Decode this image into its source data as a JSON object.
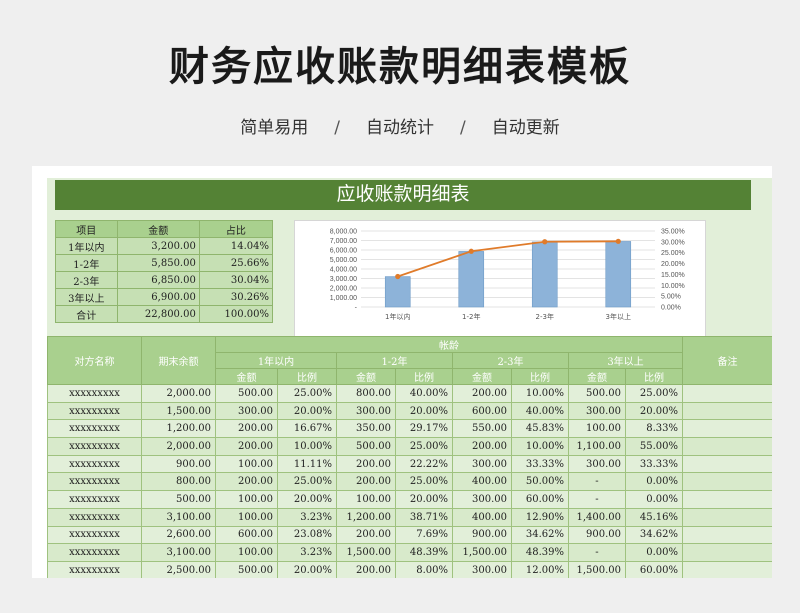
{
  "header": {
    "title": "财务应收账款明细表模板"
  },
  "subtitle": {
    "items": [
      "简单易用",
      "自动统计",
      "自动更新"
    ],
    "separator": "/"
  },
  "sheet": {
    "banner": "应收账款明细表"
  },
  "summary": {
    "headers": [
      "项目",
      "金额",
      "占比"
    ],
    "rows": [
      [
        "1年以内",
        "3,200.00",
        "14.04%"
      ],
      [
        "1-2年",
        "5,850.00",
        "25.66%"
      ],
      [
        "2-3年",
        "6,850.00",
        "30.04%"
      ],
      [
        "3年以上",
        "6,900.00",
        "30.26%"
      ],
      [
        "合计",
        "22,800.00",
        "100.00%"
      ]
    ]
  },
  "chart_data": {
    "type": "bar",
    "categories": [
      "1年以内",
      "1-2年",
      "2-3年",
      "3年以上"
    ],
    "series": [
      {
        "type": "bar",
        "axis": "left",
        "color": "#8db3d9",
        "values": [
          3200,
          5850,
          6850,
          6900
        ]
      },
      {
        "type": "line",
        "axis": "right",
        "color": "#e07b2a",
        "values": [
          14.04,
          25.66,
          30.04,
          30.26
        ]
      }
    ],
    "ylim_left": [
      0,
      8000
    ],
    "ylim_right": [
      0,
      35
    ],
    "left_ticks": [
      "8,000.00",
      "7,000.00",
      "6,000.00",
      "5,000.00",
      "4,000.00",
      "3,000.00",
      "2,000.00",
      "1,000.00",
      "-"
    ],
    "right_ticks": [
      "35.00%",
      "30.00%",
      "25.00%",
      "20.00%",
      "15.00%",
      "10.00%",
      "5.00%",
      "0.00%"
    ],
    "grid": true
  },
  "detail": {
    "col_party": "对方名称",
    "col_balance": "期末余额",
    "col_aging": "帐龄",
    "col_note": "备注",
    "buckets": [
      "1年以内",
      "1-2年",
      "2-3年",
      "3年以上"
    ],
    "sub_amount": "金额",
    "sub_ratio": "比例",
    "rows": [
      [
        "xxxxxxxxx",
        "2,000.00",
        "500.00",
        "25.00%",
        "800.00",
        "40.00%",
        "200.00",
        "10.00%",
        "500.00",
        "25.00%"
      ],
      [
        "xxxxxxxxx",
        "1,500.00",
        "300.00",
        "20.00%",
        "300.00",
        "20.00%",
        "600.00",
        "40.00%",
        "300.00",
        "20.00%"
      ],
      [
        "xxxxxxxxx",
        "1,200.00",
        "200.00",
        "16.67%",
        "350.00",
        "29.17%",
        "550.00",
        "45.83%",
        "100.00",
        "8.33%"
      ],
      [
        "xxxxxxxxx",
        "2,000.00",
        "200.00",
        "10.00%",
        "500.00",
        "25.00%",
        "200.00",
        "10.00%",
        "1,100.00",
        "55.00%"
      ],
      [
        "xxxxxxxxx",
        "900.00",
        "100.00",
        "11.11%",
        "200.00",
        "22.22%",
        "300.00",
        "33.33%",
        "300.00",
        "33.33%"
      ],
      [
        "xxxxxxxxx",
        "800.00",
        "200.00",
        "25.00%",
        "200.00",
        "25.00%",
        "400.00",
        "50.00%",
        "-",
        "0.00%"
      ],
      [
        "xxxxxxxxx",
        "500.00",
        "100.00",
        "20.00%",
        "100.00",
        "20.00%",
        "300.00",
        "60.00%",
        "-",
        "0.00%"
      ],
      [
        "xxxxxxxxx",
        "3,100.00",
        "100.00",
        "3.23%",
        "1,200.00",
        "38.71%",
        "400.00",
        "12.90%",
        "1,400.00",
        "45.16%"
      ],
      [
        "xxxxxxxxx",
        "2,600.00",
        "600.00",
        "23.08%",
        "200.00",
        "7.69%",
        "900.00",
        "34.62%",
        "900.00",
        "34.62%"
      ],
      [
        "xxxxxxxxx",
        "3,100.00",
        "100.00",
        "3.23%",
        "1,500.00",
        "48.39%",
        "1,500.00",
        "48.39%",
        "-",
        "0.00%"
      ],
      [
        "xxxxxxxxx",
        "2,500.00",
        "500.00",
        "20.00%",
        "200.00",
        "8.00%",
        "300.00",
        "12.00%",
        "1,500.00",
        "60.00%"
      ]
    ]
  }
}
